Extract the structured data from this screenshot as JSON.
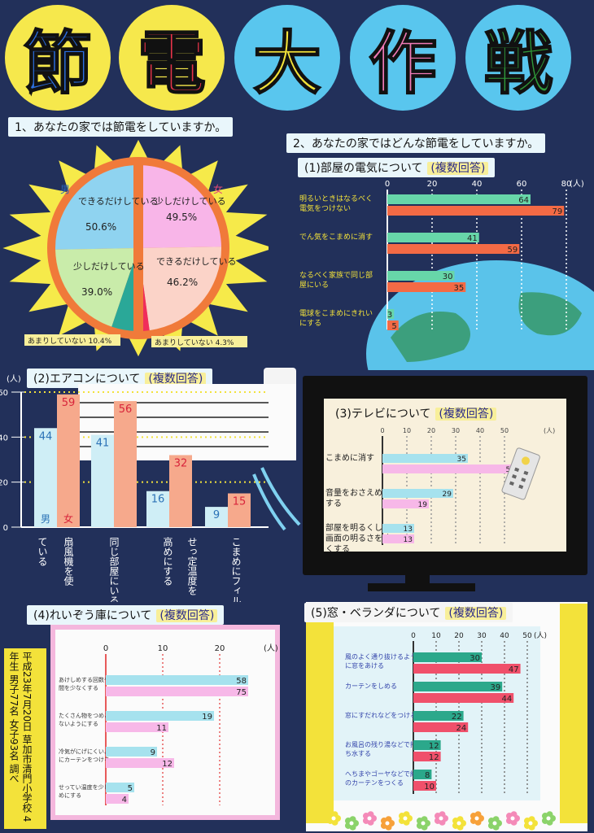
{
  "title_chars": [
    {
      "char": "節",
      "bg": "#f6e84c",
      "color": "#2c6fe0"
    },
    {
      "char": "電",
      "bg": "#f6e84c",
      "color": "#e8344a"
    },
    {
      "char": "大",
      "bg": "#59c6ee",
      "color": "#f3e23a"
    },
    {
      "char": "作",
      "bg": "#59c6ee",
      "color": "#f07ab7"
    },
    {
      "char": "戦",
      "bg": "#59c6ee",
      "color": "#2f9a3a"
    }
  ],
  "q1": {
    "title": "1、あなたの家では節電をしていますか。",
    "male_label": "男",
    "female_label": "女",
    "male": [
      {
        "label": "できるだけしている",
        "value": "50.6%",
        "color": "#8fd3f0"
      },
      {
        "label": "少しだけしている",
        "value": "39.0%",
        "color": "#c9ecaa"
      },
      {
        "label": "あまりしていない 10.4%",
        "value": "",
        "color": "#2aa898"
      }
    ],
    "female": [
      {
        "label": "少しだけしている",
        "value": "49.5%",
        "color": "#f8b5e8"
      },
      {
        "label": "できるだけしている",
        "value": "46.2%",
        "color": "#fbd3c8"
      },
      {
        "label": "あまりしていない 4.3%",
        "value": "",
        "color": "#f02d5b"
      }
    ],
    "note_left": "あまりしていない 10.4%",
    "note_right": "あまりしていない 4.3%"
  },
  "q2": {
    "title": "2、あなたの家ではどんな節電をしていますか。",
    "sub": "(1)部屋の電気について",
    "multi": "(複数回答)",
    "unit": "(人)",
    "ticks": [
      "0",
      "20",
      "40",
      "60",
      "80"
    ],
    "items": [
      {
        "label": "明るいときはなるべく電気をつけない",
        "male": 64,
        "female": 79
      },
      {
        "label": "でん気をこまめに消す",
        "male": 41,
        "female": 59
      },
      {
        "label": "なるべく家族で同じ部屋にいる",
        "male": 30,
        "female": 35
      },
      {
        "label": "電球をこまめにきれいにする",
        "male": 3,
        "female": 5
      }
    ]
  },
  "q3": {
    "title": "(2)エアコンについて",
    "multi": "(複数回答)",
    "unit": "(人)",
    "male_label": "男",
    "female_label": "女",
    "yticks": [
      "0",
      "20",
      "40",
      "60"
    ],
    "items": [
      {
        "label": "ている",
        "male": 44,
        "female": 59
      },
      {
        "label": "扇風機を使",
        "male": null,
        "female": null
      },
      {
        "label": "同じ部屋にいるなるべく家族",
        "male": 41,
        "female": 56
      },
      {
        "label": "高めにする",
        "male": 16,
        "female": 32
      },
      {
        "label": "せっ定温度を",
        "male": null,
        "female": null
      },
      {
        "label": "こまめにフィルターをそうじする",
        "male": 9,
        "female": 15
      }
    ]
  },
  "q4": {
    "title": "(3)テレビについて",
    "multi": "(複数回答)",
    "unit": "(人)",
    "ticks": [
      "0",
      "10",
      "20",
      "30",
      "40",
      "50"
    ],
    "items": [
      {
        "label": "こまめに消す",
        "male": 35,
        "female": 55
      },
      {
        "label": "音量をおさえめにする",
        "male": 29,
        "female": 19
      },
      {
        "label": "部屋を明るくして画面の明るさを暗くする",
        "male": 13,
        "female": 13
      }
    ]
  },
  "q5": {
    "title": "(4)れいぞう庫について",
    "multi": "(複数回答)",
    "unit": "(人)",
    "ticks": [
      "0",
      "10",
      "20"
    ],
    "items": [
      {
        "label": "あけしめする回数や時間を少なくする",
        "male": 58,
        "female": 75
      },
      {
        "label": "たくさん物をつめこまないようにする",
        "male": 19,
        "female": 11
      },
      {
        "label": "冷気がにげにくいようにカーテンをつける",
        "male": 9,
        "female": 12
      },
      {
        "label": "せってい温度を少し高めにする",
        "male": 5,
        "female": 4
      }
    ]
  },
  "q6": {
    "title": "(5)窓・ベランダについて",
    "multi": "(複数回答)",
    "unit": "(人)",
    "ticks": [
      "0",
      "10",
      "20",
      "30",
      "40",
      "50"
    ],
    "items": [
      {
        "label": "風のよく通り抜けるように窓をあける",
        "male": 30,
        "female": 47
      },
      {
        "label": "カーテンをしめる",
        "male": 39,
        "female": 44
      },
      {
        "label": "窓にすだれなどをつける",
        "male": 22,
        "female": 24
      },
      {
        "label": "お風呂の残り湯などで打ち水する",
        "male": 12,
        "female": 12
      },
      {
        "label": "へちまやゴーヤなどで緑のカーテンをつくる",
        "male": 8,
        "female": 10
      }
    ]
  },
  "side_note": "平成23年7月20日 草加市清門小学校 4年生 男子77名 女子93名 調べ",
  "colors": {
    "male": "#67d6a9",
    "female": "#f36a45",
    "male_light": "#a6e2ee",
    "female_light": "#f7b8e8"
  }
}
